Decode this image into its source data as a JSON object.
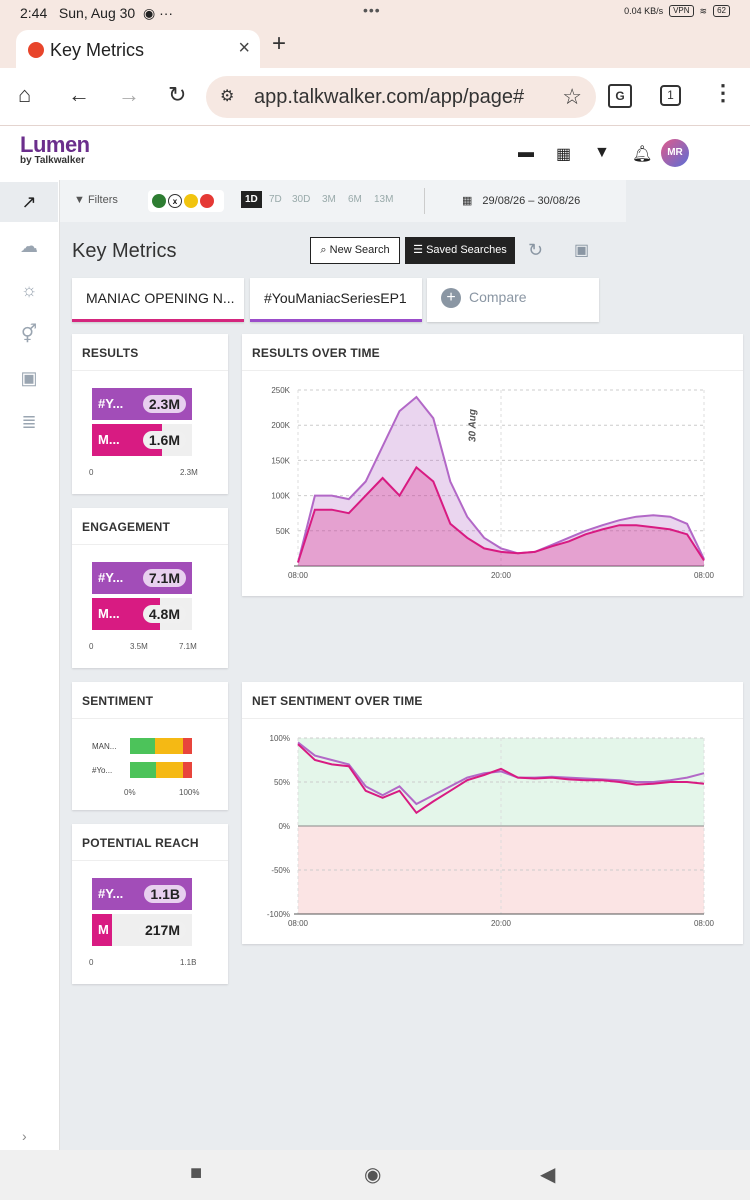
{
  "status": {
    "time": "2:44",
    "date": "Sun, Aug 30",
    "speed": "0.04 KB/s",
    "vpn": "VPN",
    "battery": "62"
  },
  "browser": {
    "tab_title": "Key Metrics",
    "url": "app.talkwalker.com/app/page#",
    "tab_count": "1"
  },
  "app": {
    "logo_name": "Lumen",
    "logo_sub": "by Talkwalker",
    "avatar": "MR"
  },
  "filterbar": {
    "filters_label": "Filters",
    "periods": [
      "1D",
      "7D",
      "30D",
      "3M",
      "6M",
      "13M"
    ],
    "active_period": "1D",
    "date_range": "29/08/26 – 30/08/26"
  },
  "page": {
    "title": "Key Metrics",
    "new_search": "New Search",
    "saved_searches": "Saved Searches"
  },
  "queries": [
    {
      "label": "MANIAC OPENING N...",
      "color": "#d4267d"
    },
    {
      "label": "#YouManiacSeriesEP1",
      "color": "#9b4dca"
    }
  ],
  "compare_label": "Compare",
  "results": {
    "title": "RESULTS",
    "bars": [
      {
        "label": "#Y...",
        "value": "2.3M",
        "fraction": 1.0
      },
      {
        "label": "M...",
        "value": "1.6M",
        "fraction": 0.7
      }
    ],
    "axis": [
      "0",
      "2.3M"
    ]
  },
  "engagement": {
    "title": "ENGAGEMENT",
    "bars": [
      {
        "label": "#Y...",
        "value": "7.1M",
        "fraction": 1.0
      },
      {
        "label": "M...",
        "value": "4.8M",
        "fraction": 0.68
      }
    ],
    "axis": [
      "0",
      "3.5M",
      "7.1M"
    ]
  },
  "sentiment": {
    "title": "SENTIMENT",
    "rows": [
      {
        "label": "MAN...",
        "positive": 0.4,
        "neutral": 0.45,
        "negative": 0.15
      },
      {
        "label": "#Yo...",
        "positive": 0.42,
        "neutral": 0.43,
        "negative": 0.15
      }
    ],
    "axis": [
      "0%",
      "100%"
    ]
  },
  "reach": {
    "title": "POTENTIAL REACH",
    "bars": [
      {
        "label": "#Y...",
        "value": "1.1B",
        "fraction": 1.0
      },
      {
        "label": "M",
        "value": "217M",
        "fraction": 0.2
      }
    ],
    "axis": [
      "0",
      "1.1B"
    ]
  },
  "chart_data": [
    {
      "type": "area",
      "title": "RESULTS OVER TIME",
      "annotation": "30 Aug",
      "x_ticks": [
        "08:00",
        "20:00",
        "08:00"
      ],
      "y_ticks": [
        "50K",
        "100K",
        "150K",
        "200K",
        "250K"
      ],
      "ylim": [
        0,
        250000
      ],
      "x": [
        0,
        1,
        2,
        3,
        4,
        5,
        6,
        7,
        8,
        9,
        10,
        11,
        12,
        13,
        14,
        15,
        16,
        17,
        18,
        19,
        20,
        21,
        22,
        23,
        24
      ],
      "series": [
        {
          "name": "#YouManiacSeriesEP1",
          "color": "#b268c7",
          "values": [
            5000,
            100000,
            100000,
            95000,
            120000,
            170000,
            220000,
            240000,
            210000,
            120000,
            70000,
            40000,
            25000,
            18000,
            20000,
            30000,
            40000,
            50000,
            58000,
            65000,
            70000,
            72000,
            70000,
            60000,
            10000
          ]
        },
        {
          "name": "MANIAC OPENING N...",
          "color": "#d81b82",
          "values": [
            5000,
            80000,
            80000,
            75000,
            100000,
            125000,
            100000,
            140000,
            120000,
            60000,
            40000,
            25000,
            20000,
            18000,
            20000,
            28000,
            35000,
            45000,
            52000,
            58000,
            58000,
            55000,
            52000,
            45000,
            8000
          ]
        }
      ]
    },
    {
      "type": "line",
      "title": "NET SENTIMENT OVER TIME",
      "x_ticks": [
        "08:00",
        "20:00",
        "08:00"
      ],
      "y_ticks": [
        "100%",
        "50%",
        "0%",
        "-50%",
        "-100%"
      ],
      "ylim": [
        -100,
        100
      ],
      "x": [
        0,
        1,
        2,
        3,
        4,
        5,
        6,
        7,
        8,
        9,
        10,
        11,
        12,
        13,
        14,
        15,
        16,
        17,
        18,
        19,
        20,
        21,
        22,
        23,
        24
      ],
      "series": [
        {
          "name": "#YouManiacSeriesEP1",
          "color": "#b268c7",
          "values": [
            95,
            80,
            75,
            70,
            45,
            35,
            45,
            25,
            35,
            45,
            55,
            60,
            62,
            55,
            55,
            56,
            55,
            54,
            53,
            52,
            50,
            50,
            52,
            55,
            60
          ]
        },
        {
          "name": "MANIAC OPENING N...",
          "color": "#d81b82",
          "values": [
            93,
            75,
            70,
            68,
            40,
            32,
            40,
            15,
            28,
            40,
            52,
            58,
            65,
            55,
            54,
            55,
            53,
            52,
            52,
            50,
            47,
            48,
            50,
            50,
            48
          ]
        }
      ]
    }
  ]
}
